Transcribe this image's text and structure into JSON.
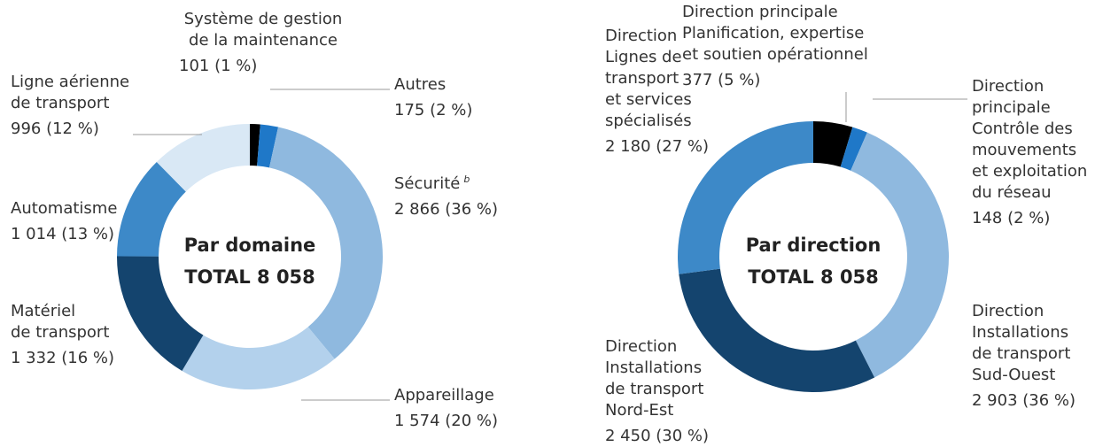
{
  "chart_data": [
    {
      "type": "donut",
      "title": "Par domaine",
      "annotation": "TOTAL 8 058",
      "categories": [
        "Système de gestion\nde la maintenance",
        "Autres",
        "Sécurité",
        "Appareillage",
        "Matériel\nde transport",
        "Automatisme",
        "Ligne aérienne\nde transport"
      ],
      "superscripts": [
        null,
        null,
        "b",
        null,
        null,
        null,
        null
      ],
      "values": [
        101,
        175,
        2866,
        1574,
        1332,
        1014,
        996
      ],
      "value_labels": [
        "101 (1 %)",
        "175 (2 %)",
        "2 866 (36 %)",
        "1 574 (20 %)",
        "1 332 (16 %)",
        "1 014 (13 %)",
        "996 (12 %)"
      ],
      "colors": [
        "#000000",
        "#1f78c8",
        "#8fb9df",
        "#b3d1ec",
        "#14446e",
        "#3d89c8",
        "#d9e8f5"
      ]
    },
    {
      "type": "donut",
      "title": "Par direction",
      "annotation": "TOTAL 8 058",
      "categories": [
        "Direction principale\nPlanification, expertise\net soutien opérationnel",
        "Direction\nprincipale\nContrôle des\nmouvements\net exploitation\ndu réseau",
        "Direction\nInstallations\nde transport\nSud-Ouest",
        "Direction\nInstallations\nde transport\nNord-Est",
        "Direction\nLignes de\ntransport\net services\nspécialisés"
      ],
      "superscripts": [
        null,
        null,
        null,
        null,
        null
      ],
      "values": [
        377,
        148,
        2903,
        2450,
        2180
      ],
      "value_labels": [
        "377 (5 %)",
        "148 (2 %)",
        "2 903 (36 %)",
        "2 450 (30 %)",
        "2 180 (27 %)"
      ],
      "colors": [
        "#000000",
        "#1f78c8",
        "#8fb9df",
        "#14446e",
        "#3d89c8"
      ]
    }
  ]
}
